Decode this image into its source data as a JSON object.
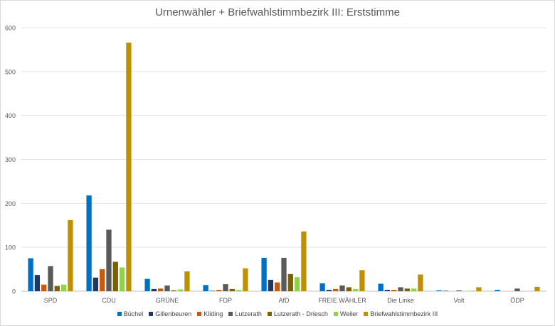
{
  "chart_data": {
    "type": "bar",
    "title": "Urnenwähler + Briefwahlstimmbezirk III: Erststimme",
    "xlabel": "",
    "ylabel": "",
    "ylim": [
      0,
      600
    ],
    "yticks": [
      0,
      100,
      200,
      300,
      400,
      500,
      600
    ],
    "grid": true,
    "legend_position": "bottom",
    "categories": [
      "SPD",
      "CDU",
      "GRÜNE",
      "FDP",
      "AfD",
      "FREIE WÄHLER",
      "Die Linke",
      "Volt",
      "ÖDP"
    ],
    "series": [
      {
        "name": "Büchel",
        "color": "#0070c0",
        "values": [
          75,
          218,
          28,
          14,
          76,
          18,
          17,
          2,
          3
        ]
      },
      {
        "name": "Gillenbeuren",
        "color": "#1f3864",
        "values": [
          37,
          31,
          5,
          1,
          26,
          3,
          3,
          1,
          0
        ]
      },
      {
        "name": "Kliding",
        "color": "#c55a11",
        "values": [
          15,
          50,
          6,
          3,
          20,
          5,
          3,
          0,
          0
        ]
      },
      {
        "name": "Lutzerath",
        "color": "#5a5a5a",
        "values": [
          57,
          140,
          13,
          16,
          76,
          13,
          9,
          2,
          6
        ]
      },
      {
        "name": "Lutzerath - Driesch",
        "color": "#7f6000",
        "values": [
          12,
          67,
          2,
          5,
          39,
          9,
          6,
          0,
          0
        ]
      },
      {
        "name": "Weiler",
        "color": "#92d050",
        "values": [
          15,
          54,
          4,
          3,
          32,
          5,
          6,
          1,
          0
        ]
      },
      {
        "name": "Briefwahlstimmbezirk III",
        "color": "#bf9000",
        "values": [
          162,
          566,
          45,
          52,
          136,
          48,
          38,
          9,
          10
        ]
      }
    ]
  }
}
